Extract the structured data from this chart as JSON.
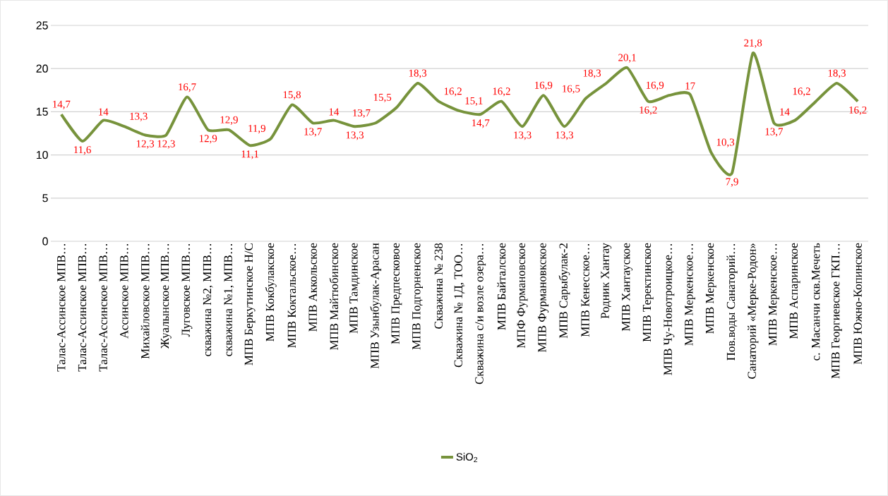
{
  "chart_data": {
    "type": "line",
    "categories": [
      "Талас-Ассинское МПВ…",
      "Талас-Ассинское МПВ…",
      "Талас-Ассинское МПВ…",
      "Ассинское МПВ…",
      "Михайловское МПВ…",
      "Жуалынское МПВ…",
      "Луговское МПВ…",
      "скважина №2, МПВ…",
      "скважина №1, МПВ…",
      "МПВ Беркутинское Н/С",
      "МПВ Кокбулакское",
      "МПВ Коктальское…",
      "МПВ Аккольское",
      "МПВ Майтюбинское",
      "МПВ Тамдинское",
      "МПВ Узынбулак-Арасан",
      "МПВ Предпесковое",
      "МПВ Подгорненское",
      "Скважина № 238",
      "Скважина № 1Д, ТОО…",
      "Скважина с/и возле озера…",
      "МПВ Байталское",
      "МПФ Фурмановское",
      "МПВ Фурмановкское",
      "МПВ Сарыбулак-2",
      "МПВ Кенесское…",
      "Родник Хантау",
      "МПВ Хантауское",
      "МПВ Теректинское",
      "МПВ Чу-Новотроицкое…",
      "МПВ Меркенское…",
      "МПВ Меркенское",
      "Пов.воды Санаторий…",
      "Санаторий «Мерке-Родон»",
      "МПВ Меркенское…",
      "МПВ Аспаринское",
      "с. Масанчи скв.Мечеть",
      "МПВ Георгиевское ГКП…",
      "МПВ Южно-Копинское"
    ],
    "series": [
      {
        "name": "SiO$_{2}$",
        "color": "#77933c",
        "values": [
          14.7,
          11.6,
          14,
          13.3,
          12.3,
          12.3,
          16.7,
          12.9,
          12.9,
          11.1,
          11.9,
          15.8,
          13.7,
          14,
          13.3,
          13.7,
          15.5,
          18.3,
          16.2,
          15.1,
          14.7,
          16.2,
          13.3,
          16.9,
          13.3,
          16.5,
          18.3,
          20.1,
          16.2,
          16.9,
          17,
          10.3,
          7.9,
          21.8,
          13.7,
          14,
          16.2,
          18.3,
          16.2
        ],
        "value_labels": [
          "14,7",
          "11,6",
          "14",
          "13,3",
          "12,3",
          "12,3",
          "16,7",
          "12,9",
          "12,9",
          "11,1",
          "11,9",
          "15,8",
          "13,7",
          "14",
          "13,3",
          "13,7",
          "15,5",
          "18,3",
          "16,2",
          "15,1",
          "14,7",
          "16,2",
          "13,3",
          "16,9",
          "13,3",
          "16,5",
          "18,3",
          "20,1",
          "16,2",
          "16,9",
          "17",
          "10,3",
          "7,9",
          "21,8",
          "13,7",
          "14",
          "16,2",
          "18,3",
          "16,2"
        ]
      }
    ],
    "ylim": [
      0,
      25
    ],
    "yticks": [
      0,
      5,
      10,
      15,
      20,
      25
    ],
    "grid": "y",
    "legend": "bottom",
    "marker": "none",
    "line_style": "solid"
  }
}
